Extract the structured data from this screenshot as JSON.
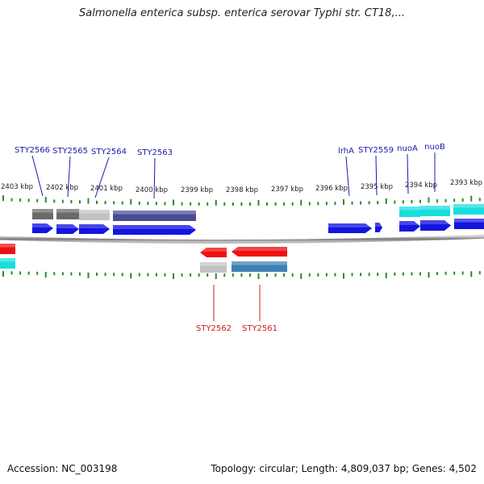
{
  "title": "Salmonella enterica subsp. enterica serovar Typhi str. CT18,...",
  "accession": "Accession: NC_003198",
  "summary": "Topology: circular; Length: 4,809,037 bp; Genes: 4,502",
  "colors": {
    "backbone": "#8c8c8c",
    "tick": "#2a8a2a",
    "forward_label": "#1a1aa8",
    "reverse_label": "#d01818",
    "cds_forward": "#1414e0",
    "cds_reverse": "#ee1010",
    "cyan_feature": "#18dede",
    "gene_gray_dark": "#6a6a6a",
    "gene_gray_light": "#c2c2c2",
    "gene_purple": "#4b4b96",
    "gene_steelblue": "#3f7fb5"
  },
  "kbp_labels": [
    {
      "text": "2403 kbp"
    },
    {
      "text": "2402 kbp"
    },
    {
      "text": "2401 kbp"
    },
    {
      "text": "2400 kbp"
    },
    {
      "text": "2399 kbp"
    },
    {
      "text": "2398 kbp"
    },
    {
      "text": "2397 kbp"
    },
    {
      "text": "2396 kbp"
    },
    {
      "text": "2395 kbp"
    },
    {
      "text": "2394 kbp"
    },
    {
      "text": "2393 kbp"
    }
  ],
  "forward_genes": [
    {
      "label": "STY2566"
    },
    {
      "label": "STY2565"
    },
    {
      "label": "STY2564"
    },
    {
      "label": "STY2563"
    },
    {
      "label": "lrhA"
    },
    {
      "label": "STY2559"
    },
    {
      "label": "nuoA"
    },
    {
      "label": "nuoB"
    }
  ],
  "reverse_genes": [
    {
      "label": "STY2562"
    },
    {
      "label": "STY2561"
    }
  ]
}
